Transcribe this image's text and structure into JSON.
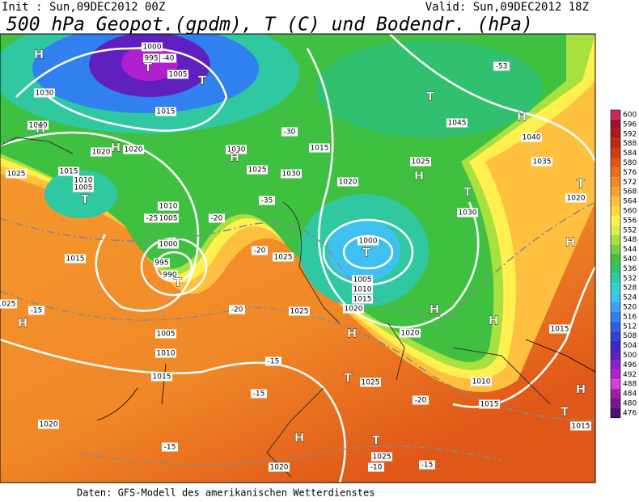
{
  "header": {
    "init": "Init : Sun,09DEC2012 00Z",
    "valid": "Valid: Sun,09DEC2012 18Z",
    "title": "500 hPa Geopot.(gpdm), T (C) und Bodendr. (hPa)"
  },
  "colorbar": {
    "ticks": [
      600,
      596,
      592,
      588,
      584,
      580,
      576,
      572,
      568,
      564,
      560,
      556,
      552,
      548,
      544,
      540,
      536,
      532,
      528,
      524,
      520,
      516,
      512,
      508,
      504,
      500,
      496,
      492,
      488,
      484,
      480,
      476
    ],
    "colors": [
      "#c8285a",
      "#a01030",
      "#b01818",
      "#c02810",
      "#d03c10",
      "#e05818",
      "#e87020",
      "#f08828",
      "#f8a030",
      "#ffc040",
      "#ffd840",
      "#fff050",
      "#d8f048",
      "#a8e040",
      "#78d040",
      "#40c040",
      "#30c070",
      "#30c8a0",
      "#30d0d0",
      "#40c0f0",
      "#40a0f0",
      "#3080f0",
      "#3060e0",
      "#3040d0",
      "#4028c0",
      "#6020c0",
      "#8820c8",
      "#b020d0",
      "#d040d8",
      "#a020a0",
      "#701890",
      "#501070"
    ]
  },
  "map": {
    "centers": [
      "H",
      "T",
      "T",
      "H",
      "H",
      "T",
      "T",
      "H",
      "H",
      "T",
      "H",
      "T",
      "H",
      "T",
      "H",
      "H",
      "T",
      "H",
      "T",
      "H",
      "H",
      "T",
      "H",
      "T"
    ],
    "labels": [
      "1000",
      "995",
      "-40",
      "1005",
      "1030",
      "1040",
      "1015",
      "1020",
      "1020",
      "1025",
      "1015",
      "1010",
      "1005",
      "1010",
      "1005",
      "1000",
      "995",
      "990",
      "1015",
      "1025",
      "1005",
      "1010",
      "1015",
      "1020",
      "-15",
      "-20",
      "1030",
      "1025",
      "1030",
      "1025",
      "1025",
      "1020",
      "1000",
      "1025",
      "1025",
      "1020",
      "-10",
      "-15",
      "-20",
      "1015",
      "1010",
      "1020",
      "1030",
      "1025",
      "1045",
      "1040",
      "1035",
      "1020",
      "1015",
      "1015",
      "-53",
      "-35",
      "-30",
      "-20",
      "-25",
      "-15",
      "-20",
      "-15",
      "-15",
      "1015",
      "1020",
      "1010",
      "1015",
      "1005"
    ]
  },
  "footer": "Daten: GFS-Modell des amerikanischen Wetterdienstes"
}
